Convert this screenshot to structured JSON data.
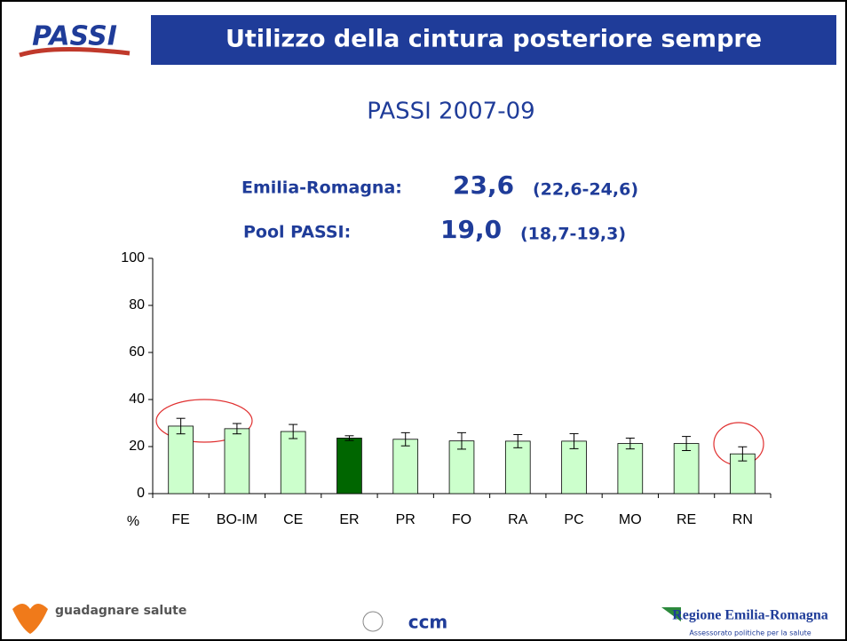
{
  "logo": "PASSI",
  "chart_data": {
    "type": "bar",
    "title": "Utilizzo della cintura posteriore sempre",
    "subtitle": "PASSI 2007-09",
    "annotations": [
      {
        "label": "Emilia-Romagna:",
        "value": "23,6",
        "range": "(22,6-24,6)"
      },
      {
        "label": "Pool PASSI:",
        "value": "19,0",
        "range": "(18,7-19,3)"
      }
    ],
    "y_unit": "%",
    "categories": [
      "FE",
      "BO-IM",
      "CE",
      "ER",
      "PR",
      "FO",
      "RA",
      "PC",
      "MO",
      "RE",
      "RN"
    ],
    "values": [
      28.7,
      27.6,
      26.4,
      23.6,
      23.1,
      22.4,
      22.3,
      22.3,
      21.3,
      21.3,
      16.9
    ],
    "errors": [
      3.3,
      2.2,
      3.0,
      1.0,
      2.8,
      3.5,
      2.8,
      3.2,
      2.3,
      3.0,
      3.0
    ],
    "colors": [
      "#ccffcc",
      "#ccffcc",
      "#ccffcc",
      "#006600",
      "#ccffcc",
      "#ccffcc",
      "#ccffcc",
      "#ccffcc",
      "#ccffcc",
      "#ccffcc",
      "#ccffcc"
    ],
    "ylim": [
      0,
      100
    ],
    "yticks": [
      0,
      20,
      40,
      60,
      80,
      100
    ],
    "grid": false
  },
  "footer": {
    "left": "guadagnare salute",
    "center": "ccm",
    "right": "Regione Emilia-Romagna",
    "right_sub": "Assessorato politiche per la salute"
  }
}
